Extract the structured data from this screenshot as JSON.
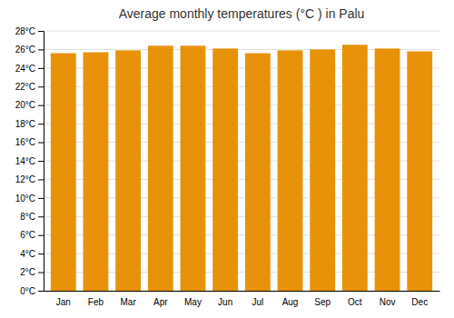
{
  "chart_data": {
    "type": "bar",
    "title": "Average monthly temperatures (°C ) in Palu",
    "categories": [
      "Jan",
      "Feb",
      "Mar",
      "Apr",
      "May",
      "Jun",
      "Jul",
      "Aug",
      "Sep",
      "Oct",
      "Nov",
      "Dec"
    ],
    "values": [
      25.6,
      25.7,
      25.9,
      26.4,
      26.4,
      26.1,
      25.6,
      25.9,
      26.0,
      26.5,
      26.1,
      25.8
    ],
    "color": "#E8920A",
    "ylim": [
      0,
      28
    ],
    "yticks": [
      {
        "value": 0,
        "label": "0°C"
      },
      {
        "value": 2,
        "label": "2°C"
      },
      {
        "value": 4,
        "label": "4°C"
      },
      {
        "value": 6,
        "label": "6°C"
      },
      {
        "value": 8,
        "label": "8°C"
      },
      {
        "value": 10,
        "label": "10°C"
      },
      {
        "value": 12,
        "label": "12°C"
      },
      {
        "value": 14,
        "label": "14°C"
      },
      {
        "value": 16,
        "label": "16°C"
      },
      {
        "value": 18,
        "label": "18°C"
      },
      {
        "value": 20,
        "label": "20°C"
      },
      {
        "value": 22,
        "label": "22°C"
      },
      {
        "value": 24,
        "label": "24°C"
      },
      {
        "value": 26,
        "label": "26°C"
      },
      {
        "value": 28,
        "label": "28°C"
      }
    ],
    "grid": true
  }
}
